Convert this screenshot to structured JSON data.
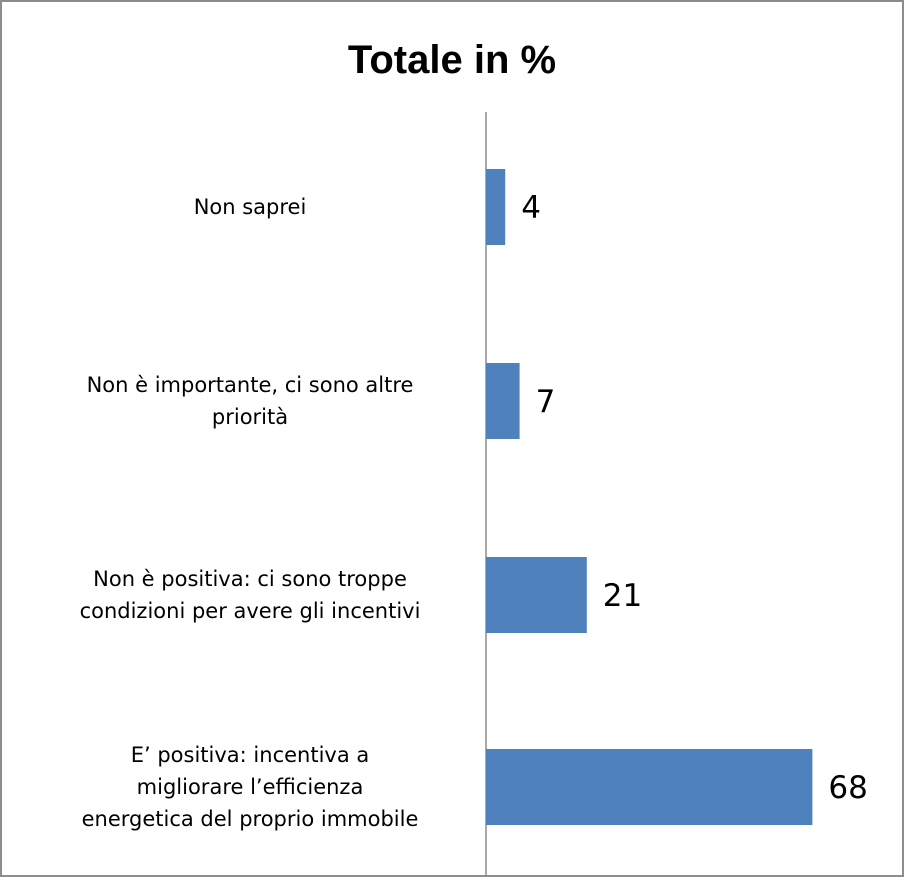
{
  "chart_data": {
    "type": "bar",
    "orientation": "horizontal",
    "title": "Totale in %",
    "categories": [
      "Non saprei",
      "Non è importante, ci sono altre priorità",
      "Non è positiva: ci sono troppe condizioni per avere gli incentivi",
      "E’ positiva: incentiva a migliorare l’efficienza energetica del proprio immobile"
    ],
    "category_lines": [
      [
        "Non saprei"
      ],
      [
        "Non è importante, ci sono altre",
        "priorità"
      ],
      [
        "Non è positiva: ci sono troppe",
        "condizioni per avere gli incentivi"
      ],
      [
        "E’ positiva: incentiva a",
        "migliorare l’efficienza",
        "energetica del proprio immobile"
      ]
    ],
    "values": [
      4,
      7,
      21,
      68
    ],
    "data_labels": [
      "4",
      "7",
      "21",
      "68"
    ],
    "xlim": [
      0,
      70
    ],
    "bar_color": "#4f81bd",
    "grid": false,
    "legend": "none"
  }
}
